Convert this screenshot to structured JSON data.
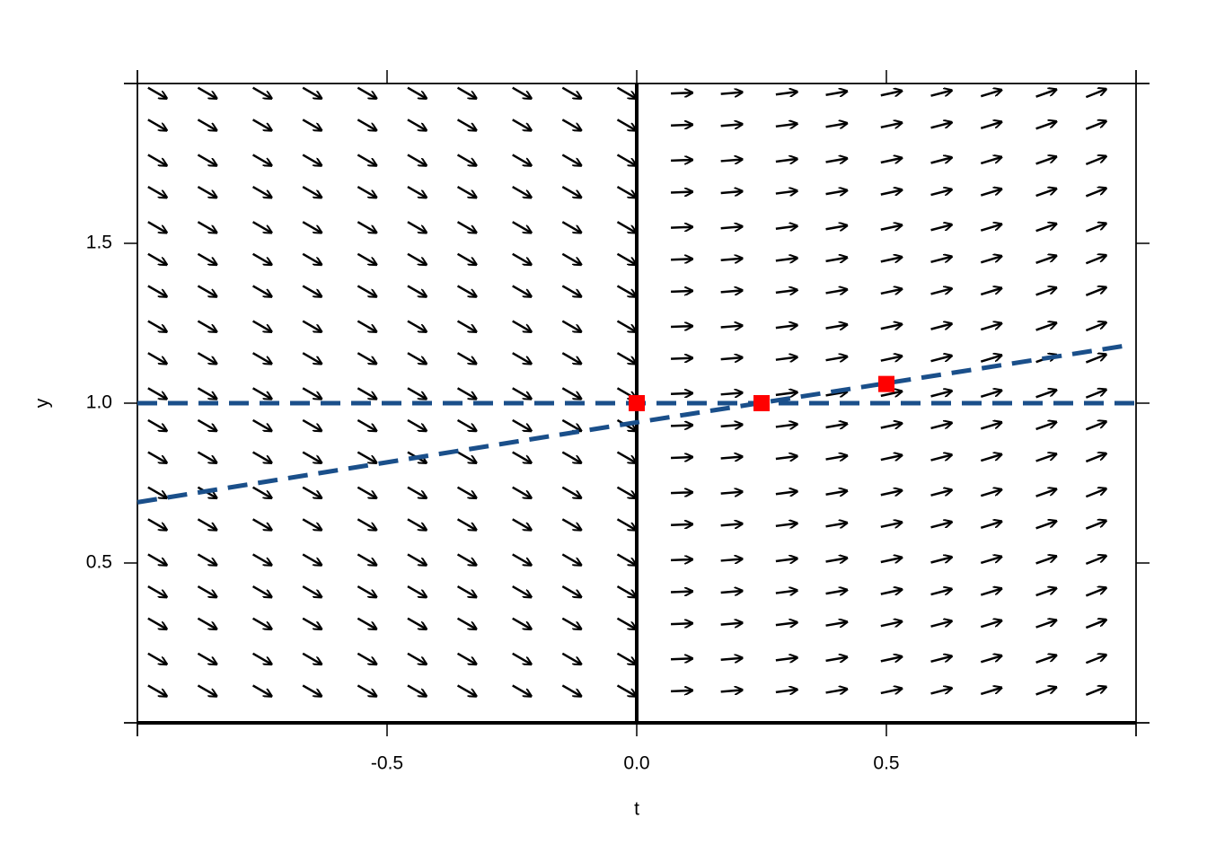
{
  "chart_data": {
    "type": "slope_field",
    "xlabel": "t",
    "ylabel": "y",
    "xlim": [
      -1,
      1
    ],
    "ylim": [
      0,
      2
    ],
    "xticks": [
      -0.5,
      {
        "value": 0,
        "label": "0.0"
      },
      0.5
    ],
    "yticks": [
      0.5,
      {
        "value": 1,
        "label": "1.0"
      },
      1.5
    ],
    "field": {
      "color": "#000000",
      "t": [
        -0.96,
        -0.86,
        -0.75,
        -0.65,
        -0.54,
        -0.44,
        -0.34,
        -0.23,
        -0.13,
        -0.02,
        0.09,
        0.19,
        0.3,
        0.4,
        0.51,
        0.61,
        0.71,
        0.82,
        0.92
      ],
      "y": [
        1.97,
        1.87,
        1.76,
        1.66,
        1.55,
        1.45,
        1.35,
        1.24,
        1.14,
        1.03,
        0.93,
        0.83,
        0.72,
        0.62,
        0.51,
        0.41,
        0.31,
        0.2,
        0.1
      ],
      "slopes": [
        -0.9,
        -0.9,
        -0.9,
        -0.9,
        -0.9,
        -0.9,
        -0.9,
        -0.9,
        -0.9,
        -0.9,
        0.06,
        0.13,
        0.2,
        0.27,
        0.34,
        0.41,
        0.48,
        0.55,
        0.62
      ]
    },
    "lines": [
      {
        "color": "#1a4f8a",
        "x": [
          -1,
          1
        ],
        "y": [
          1,
          1
        ]
      },
      {
        "color": "#1a4f8a",
        "x": [
          -1,
          0,
          0.98
        ],
        "y": [
          0.69,
          0.94,
          1.18
        ]
      }
    ],
    "points": {
      "color": "#ff0000",
      "x": [
        0,
        0.25,
        0.5
      ],
      "y": [
        1,
        1,
        1.06
      ]
    }
  }
}
